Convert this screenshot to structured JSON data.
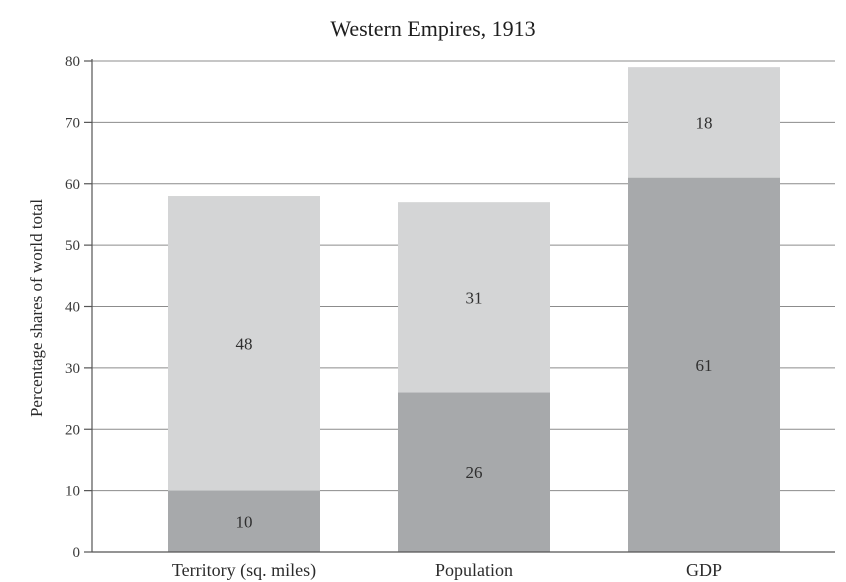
{
  "chart_data": {
    "type": "bar",
    "stacked": true,
    "title": "Western Empires, 1913",
    "xlabel": "",
    "ylabel": "Percentage shares of world total",
    "ylim": [
      0,
      80
    ],
    "yticks": [
      0,
      10,
      20,
      30,
      40,
      50,
      60,
      70,
      80
    ],
    "ytick_labels": [
      "0",
      "10",
      "20",
      "30",
      "40",
      "50",
      "60",
      "70",
      "80"
    ],
    "grid": true,
    "legend": "none",
    "categories": [
      "Territory (sq. miles)",
      "Population",
      "GDP"
    ],
    "series": [
      {
        "values": [
          10,
          26,
          61
        ],
        "labels": [
          "10",
          "26",
          "61"
        ],
        "color": "#a7a9ab"
      },
      {
        "values": [
          48,
          31,
          18
        ],
        "labels": [
          "48",
          "31",
          "18"
        ],
        "color": "#d4d5d6"
      }
    ]
  }
}
